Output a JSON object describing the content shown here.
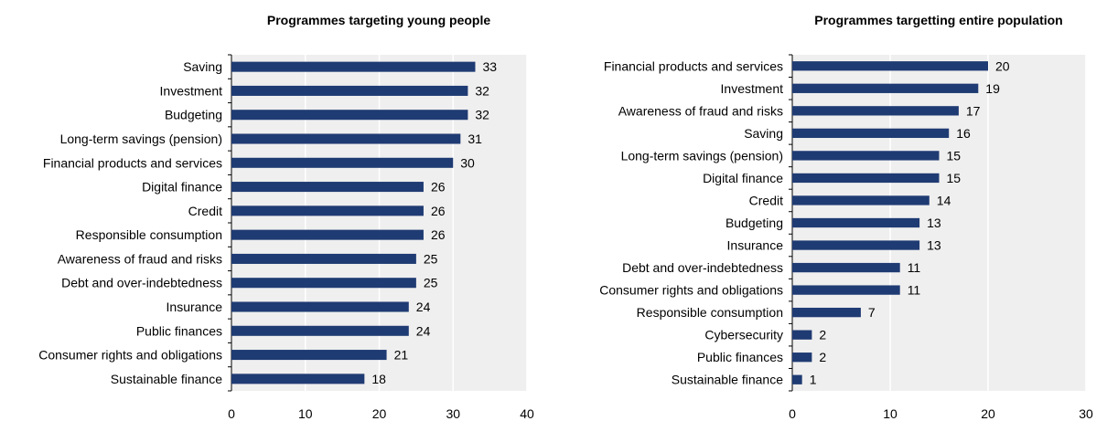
{
  "chart_data": [
    {
      "type": "bar",
      "orientation": "horizontal",
      "title": "Programmes targeting young people",
      "categories": [
        "Saving",
        "Investment",
        "Budgeting",
        "Long-term savings (pension)",
        "Financial products and services",
        "Digital finance",
        "Credit",
        "Responsible consumption",
        "Awareness of fraud and risks",
        "Debt and over-indebtedness",
        "Insurance",
        "Public finances",
        "Consumer rights and obligations",
        "Sustainable finance"
      ],
      "values": [
        33,
        32,
        32,
        31,
        30,
        26,
        26,
        26,
        25,
        25,
        24,
        24,
        21,
        18
      ],
      "xlim": [
        0,
        40
      ],
      "xticks": [
        0,
        10,
        20,
        30,
        40
      ],
      "data_labels": true,
      "bar_color": "#1f3b73",
      "background_color": "#efefef"
    },
    {
      "type": "bar",
      "orientation": "horizontal",
      "title": "Programmes targetting entire population",
      "categories": [
        "Financial products and services",
        "Investment",
        "Awareness of fraud and risks",
        "Saving",
        "Long-term savings (pension)",
        "Digital finance",
        "Credit",
        "Budgeting",
        "Insurance",
        "Debt and over-indebtedness",
        "Consumer rights and obligations",
        "Responsible consumption",
        "Cybersecurity",
        "Public finances",
        "Sustainable finance"
      ],
      "values": [
        20,
        19,
        17,
        16,
        15,
        15,
        14,
        13,
        13,
        11,
        11,
        7,
        2,
        2,
        1
      ],
      "xlim": [
        0,
        30
      ],
      "xticks": [
        0,
        10,
        20,
        30
      ],
      "data_labels": true,
      "bar_color": "#1f3b73",
      "background_color": "#efefef"
    }
  ]
}
